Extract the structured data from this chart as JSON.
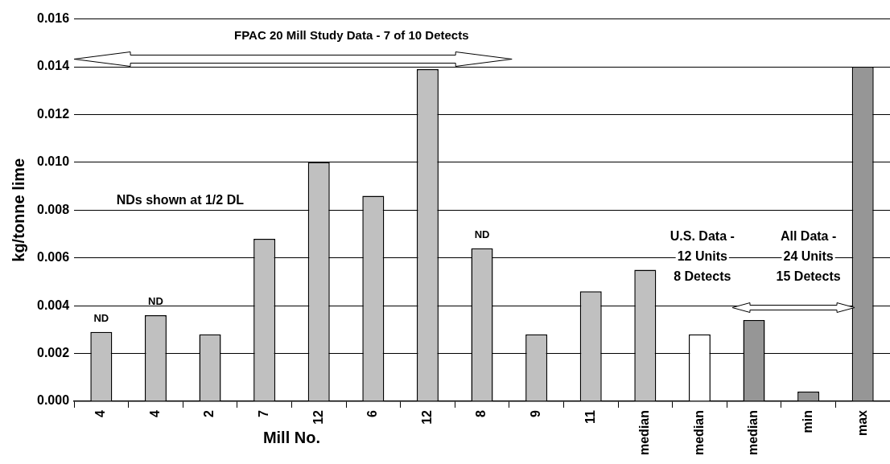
{
  "chart_data": {
    "type": "bar",
    "xlabel": "Mill No.",
    "ylabel": "kg/tonne lime",
    "categories": [
      "4",
      "4",
      "2",
      "7",
      "12",
      "6",
      "12",
      "8",
      "9",
      "11",
      "median",
      "median",
      "median",
      "min",
      "max"
    ],
    "values": [
      0.0029,
      0.0036,
      0.0028,
      0.0068,
      0.01,
      0.0086,
      0.0139,
      0.0064,
      0.0028,
      0.0046,
      0.0055,
      0.0028,
      0.0034,
      0.0004,
      0.014
    ],
    "colors": [
      "#c0c0c0",
      "#c0c0c0",
      "#c0c0c0",
      "#c0c0c0",
      "#c0c0c0",
      "#c0c0c0",
      "#c0c0c0",
      "#c0c0c0",
      "#c0c0c0",
      "#c0c0c0",
      "#c0c0c0",
      "#ffffff",
      "#969696",
      "#969696",
      "#969696"
    ],
    "value_labels": [
      "ND",
      "ND",
      null,
      null,
      null,
      null,
      null,
      "ND",
      null,
      null,
      null,
      null,
      null,
      null,
      null
    ],
    "ylim": [
      0,
      0.016
    ],
    "yticks": [
      {
        "value": 0,
        "label": "0.000"
      },
      {
        "value": 0.002,
        "label": "0.002"
      },
      {
        "value": 0.004,
        "label": "0.004"
      },
      {
        "value": 0.006,
        "label": "0.006"
      },
      {
        "value": 0.008,
        "label": "0.008"
      },
      {
        "value": 0.01,
        "label": "0.010"
      },
      {
        "value": 0.012,
        "label": "0.012"
      },
      {
        "value": 0.014,
        "label": "0.014"
      },
      {
        "value": 0.016,
        "label": "0.016"
      }
    ],
    "grid": "y",
    "legend": false,
    "annotations": [
      "FPAC 20 Mill Study Data - 7 of 10 Detects",
      "NDs shown at 1/2 DL",
      "U.S. Data -\n12 Units\n8 Detects",
      "All Data -\n24 Units\n15 Detects"
    ]
  }
}
